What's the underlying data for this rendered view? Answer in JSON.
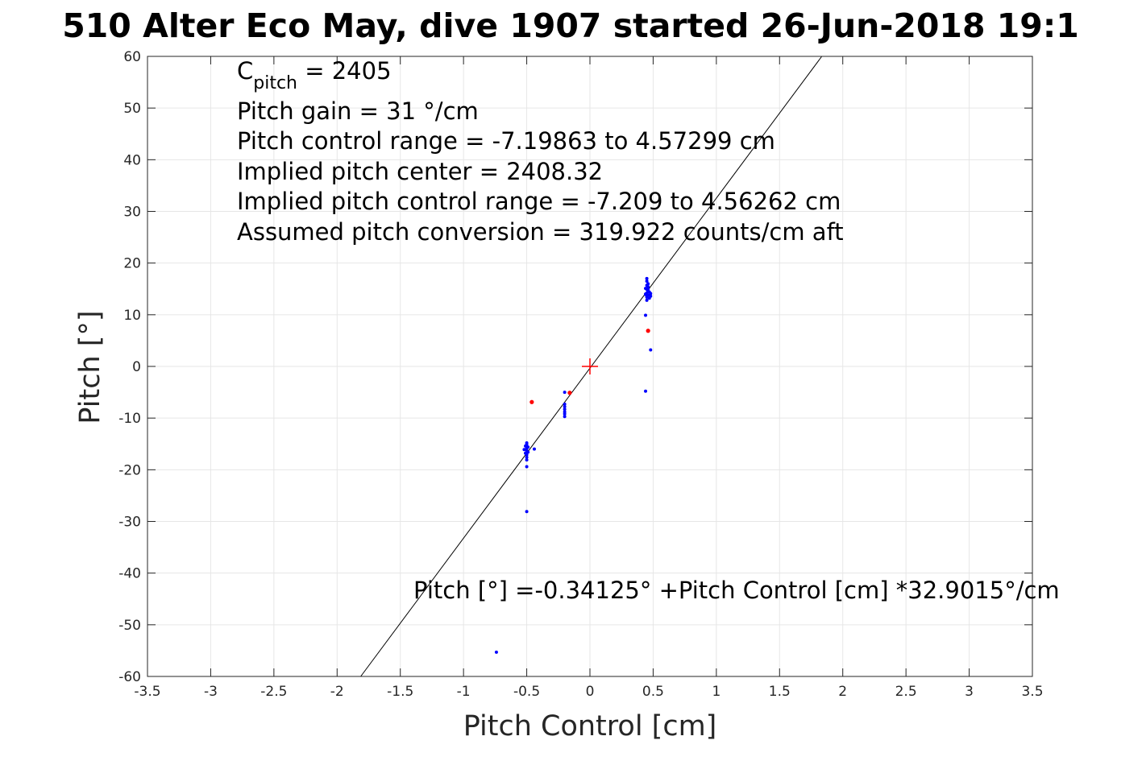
{
  "chart_data": {
    "type": "scatter",
    "title": "510 Alter Eco May, dive 1907 started 26-Jun-2018 19:1",
    "xlabel": "Pitch Control [cm]",
    "ylabel": "Pitch [°]",
    "xlim": [
      -3.5,
      3.5
    ],
    "ylim": [
      -60,
      60
    ],
    "x_ticks": [
      -3.5,
      -3,
      -2.5,
      -2,
      -1.5,
      -1,
      -0.5,
      0,
      0.5,
      1,
      1.5,
      2,
      2.5,
      3,
      3.5
    ],
    "x_tick_labels": [
      "-3.5",
      "-3",
      "-2.5",
      "-2",
      "-1.5",
      "-1",
      "-0.5",
      "0",
      "0.5",
      "1",
      "1.5",
      "2",
      "2.5",
      "3",
      "3.5"
    ],
    "y_ticks": [
      -60,
      -50,
      -40,
      -30,
      -20,
      -10,
      0,
      10,
      20,
      30,
      40,
      50,
      60
    ],
    "y_tick_labels": [
      "-60",
      "-50",
      "-40",
      "-30",
      "-20",
      "-10",
      "0",
      "10",
      "20",
      "30",
      "40",
      "50",
      "60"
    ],
    "grid": true,
    "colors": {
      "blue": "#0000ff",
      "red": "#ff0000",
      "fit_line": "#000000",
      "grid": "#e6e6e6",
      "axes": "#262626"
    },
    "annotations": {
      "c_pitch_main": "C",
      "c_pitch_sub": "pitch",
      "c_pitch_rest": " = 2405",
      "lines": [
        "Pitch gain = 31 °/cm",
        "Pitch control range = -7.19863 to 4.57299 cm",
        "Implied pitch center = 2408.32",
        "Implied pitch control range = -7.209 to 4.56262 cm",
        "Assumed pitch conversion = 319.922 counts/cm aft"
      ],
      "fit_equation": "Pitch [°] =-0.34125° +Pitch Control [cm] *32.9015°/cm"
    },
    "fit_line": {
      "intercept": -0.34125,
      "slope": 32.9015
    },
    "center_marker": {
      "x": 0,
      "y": 0
    },
    "series": [
      {
        "color": "blue",
        "points": [
          [
            0.45,
            17.0
          ],
          [
            0.45,
            16.5
          ],
          [
            0.46,
            16.0
          ],
          [
            0.45,
            15.7
          ],
          [
            0.46,
            15.4
          ],
          [
            0.44,
            15.1
          ],
          [
            0.45,
            14.9
          ],
          [
            0.46,
            14.6
          ],
          [
            0.47,
            14.4
          ],
          [
            0.45,
            14.2
          ],
          [
            0.44,
            14.0
          ],
          [
            0.46,
            13.8
          ],
          [
            0.48,
            13.6
          ],
          [
            0.45,
            13.4
          ],
          [
            0.47,
            13.2
          ],
          [
            0.44,
            13.9
          ],
          [
            0.46,
            15.0
          ],
          [
            0.48,
            14.1
          ],
          [
            0.45,
            12.8
          ],
          [
            0.44,
            9.9
          ],
          [
            0.48,
            3.2
          ],
          [
            0.44,
            -4.8
          ],
          [
            -0.2,
            -5.0
          ],
          [
            -0.2,
            -7.3
          ],
          [
            -0.2,
            -7.8
          ],
          [
            -0.2,
            -8.3
          ],
          [
            -0.2,
            -8.8
          ],
          [
            -0.2,
            -9.2
          ],
          [
            -0.2,
            -9.7
          ],
          [
            -0.5,
            -14.8
          ],
          [
            -0.5,
            -15.1
          ],
          [
            -0.51,
            -15.4
          ],
          [
            -0.49,
            -15.6
          ],
          [
            -0.5,
            -15.9
          ],
          [
            -0.52,
            -16.1
          ],
          [
            -0.5,
            -16.3
          ],
          [
            -0.49,
            -16.6
          ],
          [
            -0.51,
            -16.8
          ],
          [
            -0.5,
            -17.1
          ],
          [
            -0.5,
            -17.6
          ],
          [
            -0.5,
            -18.1
          ],
          [
            -0.5,
            -19.4
          ],
          [
            -0.44,
            -16.0
          ],
          [
            -0.5,
            -28.1
          ],
          [
            -0.74,
            -55.3
          ]
        ]
      },
      {
        "color": "red",
        "points": [
          [
            -0.46,
            -6.9
          ],
          [
            -0.16,
            -5.1
          ],
          [
            0.46,
            6.9
          ]
        ]
      }
    ]
  }
}
